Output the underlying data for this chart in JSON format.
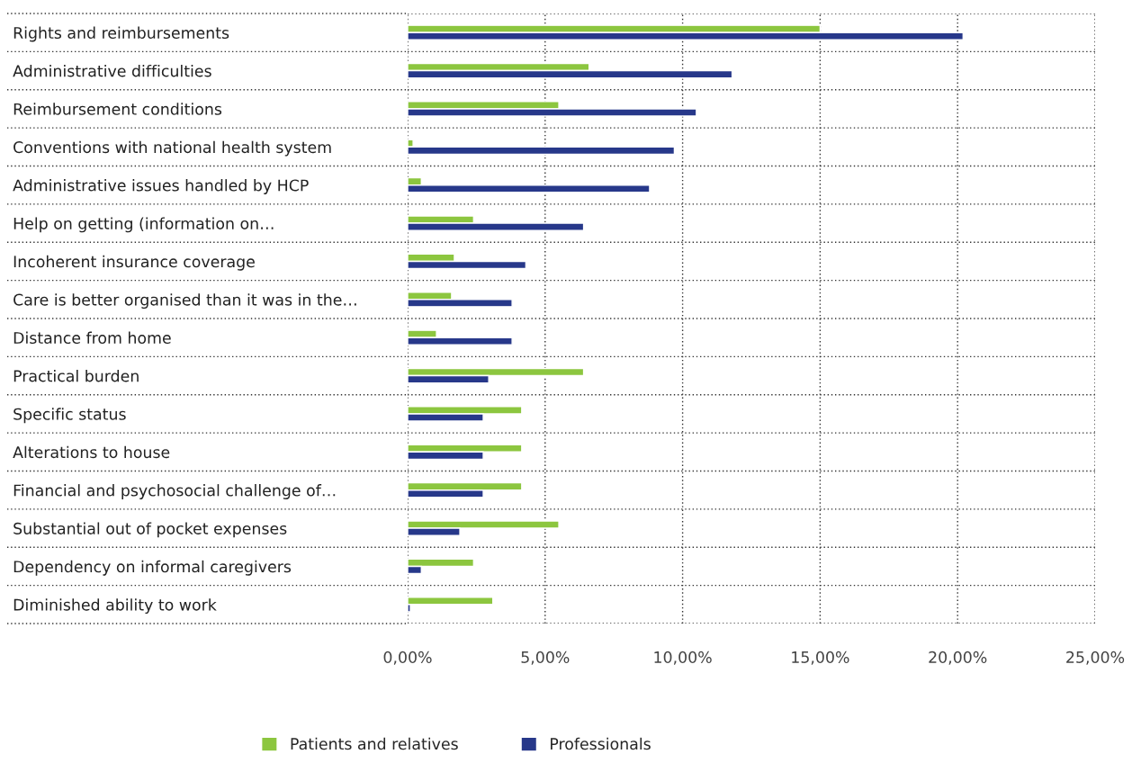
{
  "chart_data": {
    "type": "bar",
    "orientation": "horizontal",
    "categories": [
      "Rights and reimbursements",
      "Administrative difficulties",
      "Reimbursement conditions",
      "Conventions with national health system",
      "Administrative issues handled by HCP",
      "Help on getting (information on…",
      "Incoherent insurance coverage",
      "Care is better organised than it was in the…",
      "Distance from home",
      "Practical burden",
      "Specific status",
      "Alterations to house",
      "Financial and psychosocial challenge of…",
      "Substantial out of pocket expenses",
      "Dependency on informal caregivers",
      "Diminished ability to work"
    ],
    "series": [
      {
        "name": "Patients and relatives",
        "color": "#8cc63f",
        "values": [
          15.0,
          6.6,
          5.5,
          0.2,
          0.5,
          2.4,
          1.7,
          1.6,
          1.05,
          6.4,
          4.15,
          4.15,
          4.15,
          5.5,
          2.4,
          3.1
        ]
      },
      {
        "name": "Professionals",
        "color": "#27388a",
        "values": [
          20.2,
          11.8,
          10.5,
          9.7,
          8.8,
          6.4,
          4.3,
          3.8,
          3.8,
          2.95,
          2.75,
          2.75,
          2.75,
          1.9,
          0.5,
          0.1
        ]
      }
    ],
    "xlim": [
      0,
      25
    ],
    "xticks": [
      {
        "value": 0,
        "label": "0,00%"
      },
      {
        "value": 5,
        "label": "5,00%"
      },
      {
        "value": 10,
        "label": "10,00%"
      },
      {
        "value": 15,
        "label": "15,00%"
      },
      {
        "value": 20,
        "label": "20,00%"
      },
      {
        "value": 25,
        "label": "25,00%"
      }
    ],
    "grid": true,
    "legend": "bottom"
  }
}
